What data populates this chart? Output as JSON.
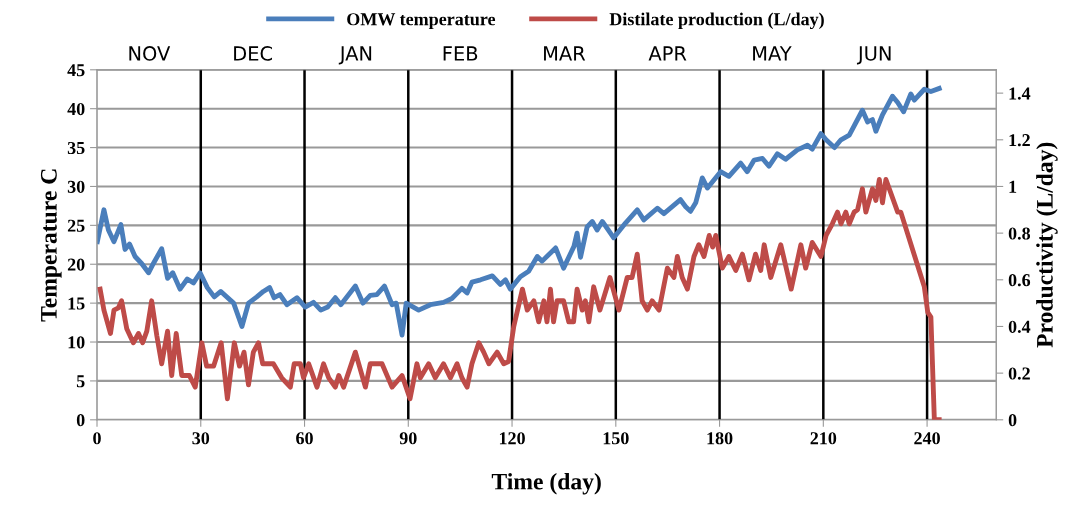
{
  "chart_data": {
    "type": "line",
    "xlabel": "Time (day)",
    "ylabel": "Temperature C",
    "y2label": "Productivity (L/day)",
    "xlim": [
      0,
      260
    ],
    "xticks": [
      0,
      30,
      60,
      90,
      120,
      150,
      180,
      210,
      240
    ],
    "ylim": [
      0,
      45
    ],
    "yticks": [
      0,
      5,
      10,
      15,
      20,
      25,
      30,
      35,
      40,
      45
    ],
    "y2lim": [
      0,
      1.5
    ],
    "y2ticks": [
      0,
      0.2,
      0.4,
      0.6,
      0.8,
      1,
      1.2,
      1.4
    ],
    "grid": "y",
    "legend": "top",
    "marker": "none",
    "line_style": "solid",
    "ref_lines": [
      {
        "axis": "x",
        "value": 30,
        "color": "#000000"
      },
      {
        "axis": "x",
        "value": 60,
        "color": "#000000"
      },
      {
        "axis": "x",
        "value": 90,
        "color": "#000000"
      },
      {
        "axis": "x",
        "value": 120,
        "color": "#000000"
      },
      {
        "axis": "x",
        "value": 150,
        "color": "#000000"
      },
      {
        "axis": "x",
        "value": 180,
        "color": "#000000"
      },
      {
        "axis": "x",
        "value": 210,
        "color": "#000000"
      },
      {
        "axis": "x",
        "value": 240,
        "color": "#000000"
      }
    ],
    "annotations": [
      "NOV",
      "DEC",
      "JAN",
      "FEB",
      "MAR",
      "APR",
      "MAY",
      "JUN"
    ],
    "series": [
      {
        "name": "OMW temperature",
        "color": "#4a7ebb",
        "x": [
          0.1,
          2.0,
          3.3,
          4.9,
          6.9,
          8.1,
          9.4,
          11.0,
          12.9,
          14.9,
          16.3,
          18.7,
          20.4,
          21.9,
          24.0,
          26.1,
          27.9,
          29.8,
          31.9,
          33.9,
          35.8,
          39.5,
          41.9,
          43.8,
          46.2,
          48.1,
          49.9,
          51.2,
          52.9,
          54.9,
          57.8,
          60.2,
          62.6,
          64.7,
          66.7,
          68.9,
          70.5,
          74.7,
          76.9,
          79.0,
          80.9,
          83.1,
          85.3,
          86.5,
          88.2,
          89.4,
          93.0,
          96.4,
          100.2,
          102.6,
          105.5,
          107.0,
          108.4,
          110.9,
          114.3,
          116.6,
          118.1,
          119.5,
          122.4,
          124.8,
          127.3,
          128.7,
          132.6,
          134.9,
          137.9,
          138.8,
          139.8,
          141.7,
          143.2,
          144.6,
          146.1,
          149.4,
          152.8,
          156.2,
          158.1,
          162.0,
          163.9,
          168.7,
          170.2,
          171.6,
          173.1,
          175.0,
          176.5,
          180.3,
          182.7,
          186.1,
          188.0,
          190.0,
          192.4,
          194.3,
          196.7,
          199.1,
          202.5,
          205.4,
          206.8,
          209.3,
          210.8,
          213.2,
          215.1,
          217.5,
          221.3,
          222.8,
          224.2,
          225.2,
          227.1,
          230.0,
          231.5,
          233.2,
          235.3,
          236.3,
          239.2,
          241.1,
          243.5
        ],
        "values": [
          22.9,
          27.0,
          24.4,
          22.9,
          25.1,
          21.9,
          22.6,
          21.0,
          20.1,
          18.9,
          20.1,
          22.0,
          18.2,
          18.9,
          16.8,
          18.1,
          17.6,
          18.9,
          17.0,
          15.8,
          16.5,
          15.0,
          12.0,
          15.0,
          15.8,
          16.5,
          17.0,
          15.7,
          16.1,
          14.8,
          15.7,
          14.5,
          15.1,
          14.1,
          14.5,
          15.7,
          14.8,
          17.2,
          15.0,
          16.0,
          16.1,
          17.2,
          14.8,
          15.0,
          10.9,
          15.0,
          14.1,
          14.8,
          15.1,
          15.6,
          16.9,
          16.3,
          17.7,
          18.0,
          18.5,
          17.4,
          18.0,
          16.8,
          18.4,
          19.1,
          21.0,
          20.4,
          22.1,
          19.5,
          22.3,
          24.0,
          20.9,
          24.8,
          25.5,
          24.4,
          25.5,
          23.4,
          25.3,
          27.0,
          25.7,
          27.2,
          26.5,
          28.3,
          27.4,
          26.8,
          27.9,
          31.1,
          29.8,
          31.9,
          31.3,
          33.0,
          31.9,
          33.4,
          33.6,
          32.6,
          34.2,
          33.5,
          34.7,
          35.3,
          34.8,
          36.8,
          36.0,
          35.0,
          36.0,
          36.6,
          39.8,
          38.3,
          38.6,
          37.1,
          39.2,
          41.6,
          40.8,
          39.6,
          41.9,
          41.1,
          42.5,
          42.2,
          42.6
        ]
      },
      {
        "name": "Distilate production (L/day)",
        "color": "#be4b48",
        "axis": "y2",
        "x": [
          0.9,
          2.0,
          3.9,
          4.9,
          6.2,
          7.1,
          8.6,
          10.5,
          12.0,
          13.2,
          14.4,
          15.8,
          17.3,
          18.7,
          20.4,
          21.6,
          22.9,
          24.5,
          26.7,
          28.4,
          30.3,
          31.7,
          33.7,
          35.9,
          37.7,
          39.7,
          41.2,
          42.5,
          43.8,
          45.2,
          46.7,
          47.9,
          51.0,
          53.4,
          55.9,
          57.0,
          58.8,
          59.7,
          61.2,
          63.6,
          65.5,
          67.0,
          68.9,
          69.9,
          71.3,
          74.7,
          77.6,
          79.0,
          82.4,
          85.3,
          88.2,
          90.5,
          92.5,
          93.5,
          95.9,
          97.8,
          100.2,
          102.2,
          104.1,
          105.5,
          107.0,
          108.4,
          110.4,
          111.8,
          113.3,
          115.7,
          117.6,
          119.0,
          120.5,
          123.0,
          124.4,
          126.3,
          127.7,
          129.2,
          130.1,
          131.1,
          132.0,
          133.0,
          134.9,
          136.4,
          137.8,
          138.8,
          140.3,
          141.2,
          142.2,
          143.6,
          145.4,
          148.3,
          150.9,
          153.3,
          154.7,
          156.2,
          157.6,
          159.1,
          160.5,
          162.5,
          164.9,
          166.8,
          167.8,
          169.2,
          170.7,
          172.6,
          174.0,
          175.5,
          177.0,
          178.0,
          178.9,
          180.8,
          182.7,
          184.7,
          186.6,
          188.5,
          190.4,
          191.9,
          192.9,
          194.8,
          197.7,
          200.7,
          203.5,
          204.9,
          206.8,
          209.3,
          210.8,
          212.6,
          214.1,
          215.1,
          216.5,
          217.5,
          218.9,
          219.9,
          221.3,
          222.3,
          224.2,
          225.2,
          226.2,
          227.1,
          228.1,
          231.5,
          232.4,
          239.2,
          240.2,
          241.1,
          242.1,
          243.5
        ],
        "values": [
          0.56,
          0.47,
          0.37,
          0.47,
          0.48,
          0.51,
          0.39,
          0.33,
          0.37,
          0.33,
          0.38,
          0.51,
          0.36,
          0.24,
          0.38,
          0.19,
          0.37,
          0.19,
          0.19,
          0.14,
          0.33,
          0.23,
          0.23,
          0.33,
          0.09,
          0.33,
          0.23,
          0.29,
          0.15,
          0.29,
          0.33,
          0.24,
          0.24,
          0.18,
          0.14,
          0.24,
          0.24,
          0.18,
          0.24,
          0.14,
          0.24,
          0.18,
          0.14,
          0.19,
          0.14,
          0.29,
          0.14,
          0.24,
          0.24,
          0.14,
          0.19,
          0.09,
          0.24,
          0.18,
          0.24,
          0.18,
          0.24,
          0.18,
          0.24,
          0.18,
          0.14,
          0.24,
          0.33,
          0.29,
          0.24,
          0.29,
          0.24,
          0.25,
          0.4,
          0.56,
          0.47,
          0.51,
          0.42,
          0.51,
          0.42,
          0.56,
          0.42,
          0.51,
          0.51,
          0.42,
          0.42,
          0.56,
          0.47,
          0.51,
          0.42,
          0.57,
          0.47,
          0.61,
          0.47,
          0.61,
          0.61,
          0.71,
          0.51,
          0.47,
          0.51,
          0.47,
          0.65,
          0.61,
          0.7,
          0.61,
          0.56,
          0.7,
          0.75,
          0.7,
          0.79,
          0.74,
          0.79,
          0.65,
          0.7,
          0.64,
          0.71,
          0.6,
          0.71,
          0.64,
          0.75,
          0.61,
          0.75,
          0.56,
          0.75,
          0.65,
          0.76,
          0.7,
          0.79,
          0.84,
          0.89,
          0.84,
          0.89,
          0.84,
          0.89,
          0.9,
          0.99,
          0.89,
          0.99,
          0.94,
          1.03,
          0.93,
          1.03,
          0.89,
          0.89,
          0.57,
          0.46,
          0.44,
          0,
          0
        ]
      }
    ]
  }
}
